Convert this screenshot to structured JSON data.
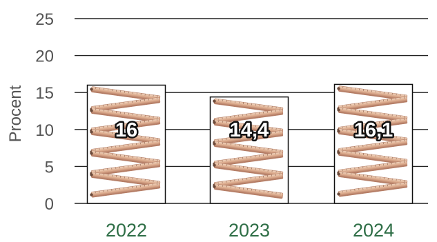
{
  "chart_data": {
    "type": "bar",
    "title": "",
    "xlabel": "",
    "ylabel": "Procent",
    "categories": [
      "2022",
      "2023",
      "2024"
    ],
    "values": [
      16,
      14.4,
      16.1
    ],
    "value_labels": [
      "16",
      "14,4",
      "16,1"
    ],
    "ylim": [
      0,
      25
    ],
    "yticks": [
      0,
      5,
      10,
      15,
      20,
      25
    ],
    "grid": true,
    "legend": "none",
    "bar_fill": "folding-ruler pictogram",
    "colors": {
      "category_label": "#2e6e46",
      "tick_label": "#555555",
      "grid": "#222222",
      "bar_outline": "#111111",
      "ruler_light": "#e7c3a6",
      "ruler_dark": "#b9826a"
    }
  }
}
